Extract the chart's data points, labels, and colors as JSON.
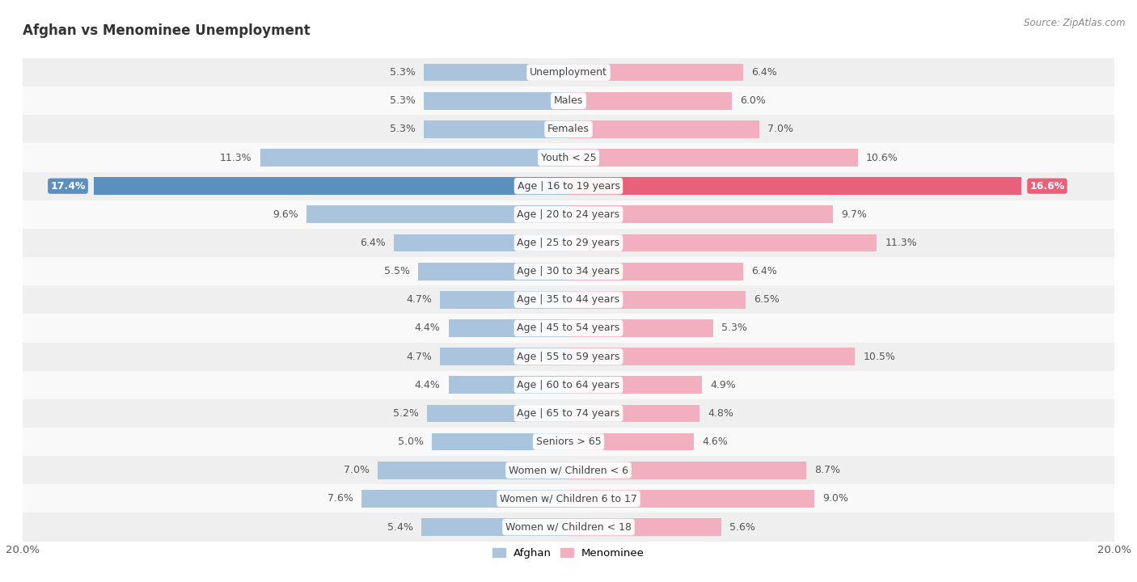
{
  "title": "Afghan vs Menominee Unemployment",
  "source": "Source: ZipAtlas.com",
  "categories": [
    "Unemployment",
    "Males",
    "Females",
    "Youth < 25",
    "Age | 16 to 19 years",
    "Age | 20 to 24 years",
    "Age | 25 to 29 years",
    "Age | 30 to 34 years",
    "Age | 35 to 44 years",
    "Age | 45 to 54 years",
    "Age | 55 to 59 years",
    "Age | 60 to 64 years",
    "Age | 65 to 74 years",
    "Seniors > 65",
    "Women w/ Children < 6",
    "Women w/ Children 6 to 17",
    "Women w/ Children < 18"
  ],
  "afghan_values": [
    5.3,
    5.3,
    5.3,
    11.3,
    17.4,
    9.6,
    6.4,
    5.5,
    4.7,
    4.4,
    4.7,
    4.4,
    5.2,
    5.0,
    7.0,
    7.6,
    5.4
  ],
  "menominee_values": [
    6.4,
    6.0,
    7.0,
    10.6,
    16.6,
    9.7,
    11.3,
    6.4,
    6.5,
    5.3,
    10.5,
    4.9,
    4.8,
    4.6,
    8.7,
    9.0,
    5.6
  ],
  "afghan_color": "#aac4de",
  "menominee_color": "#f2afc0",
  "highlight_afghan_color": "#5a8fc0",
  "highlight_menominee_color": "#e8607a",
  "row_bg_even": "#efefef",
  "row_bg_odd": "#f9f9f9",
  "axis_max": 20.0,
  "bar_height": 0.62,
  "label_fontsize": 9.0,
  "category_fontsize": 9.0,
  "title_fontsize": 12,
  "legend_labels": [
    "Afghan",
    "Menominee"
  ],
  "highlight_row": 4
}
